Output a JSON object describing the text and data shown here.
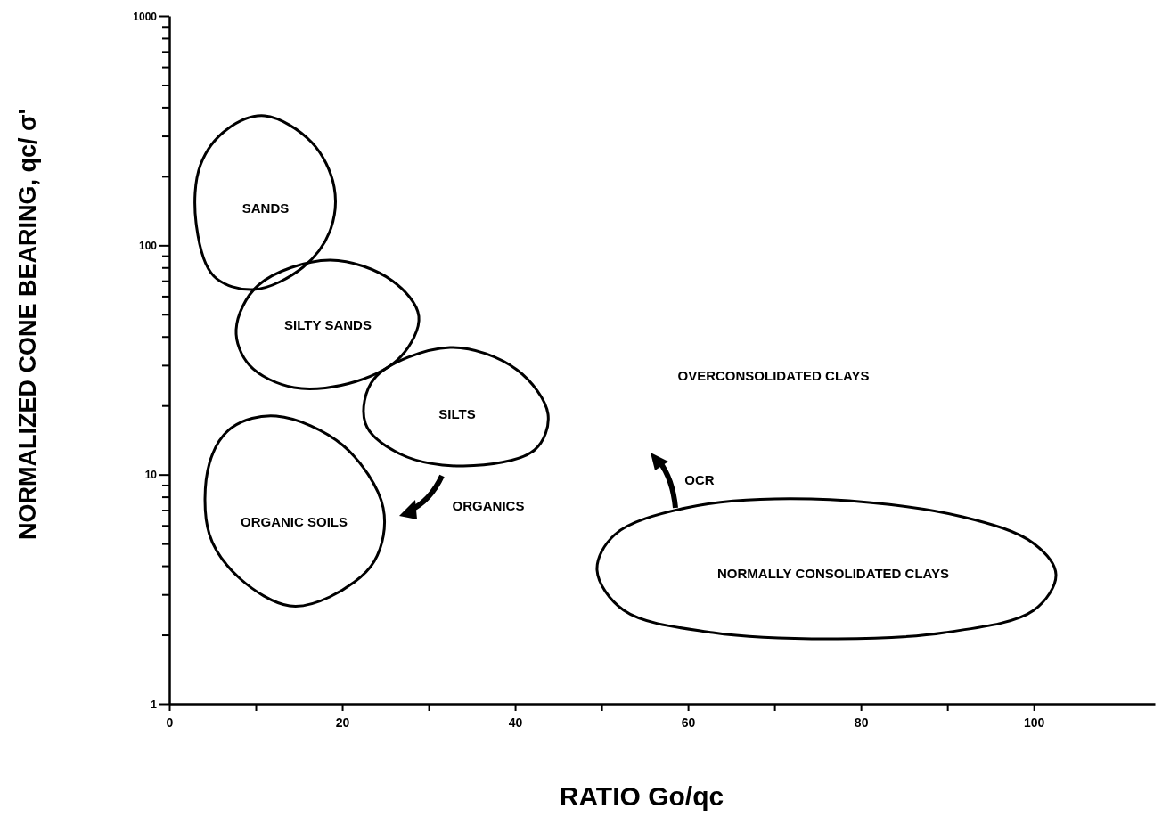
{
  "chart_data": {
    "type": "line",
    "xlabel": "RATIO  Go/qc",
    "ylabel": "NORMALIZED CONE BEARING,  qc/ σ'",
    "xlim": [
      0,
      114
    ],
    "ylim": [
      1,
      1000
    ],
    "log": "y",
    "grid": false,
    "xticks": [
      0,
      {
        "value": 10,
        "label": null
      },
      20,
      {
        "value": 30,
        "label": null
      },
      40,
      {
        "value": 50,
        "label": null
      },
      60,
      {
        "value": 70,
        "label": null
      },
      80,
      {
        "value": 90,
        "label": null
      },
      100
    ],
    "yticks": [
      1,
      {
        "value": 2,
        "label": null
      },
      {
        "value": 3,
        "label": null
      },
      {
        "value": 4,
        "label": null
      },
      {
        "value": 5,
        "label": null
      },
      {
        "value": 6,
        "label": null
      },
      {
        "value": 7,
        "label": null
      },
      {
        "value": 8,
        "label": null
      },
      {
        "value": 9,
        "label": null
      },
      10,
      {
        "value": 20,
        "label": null
      },
      {
        "value": 30,
        "label": null
      },
      {
        "value": 40,
        "label": null
      },
      {
        "value": 50,
        "label": null
      },
      {
        "value": 60,
        "label": null
      },
      {
        "value": 70,
        "label": null
      },
      {
        "value": 80,
        "label": null
      },
      {
        "value": 90,
        "label": null
      },
      100,
      {
        "value": 200,
        "label": null
      },
      {
        "value": 300,
        "label": null
      },
      {
        "value": 400,
        "label": null
      },
      {
        "value": 500,
        "label": null
      },
      {
        "value": 600,
        "label": null
      },
      {
        "value": 700,
        "label": null
      },
      {
        "value": 800,
        "label": null
      },
      {
        "value": 900,
        "label": null
      },
      1000
    ],
    "annotations": [
      "SANDS",
      "SILTY SANDS",
      "SILTS",
      "ORGANIC SOILS",
      "ORGANICS",
      "OCR",
      "OVERCONSOLIDATED CLAYS",
      "NORMALLY CONSOLIDATED CLAYS"
    ]
  }
}
